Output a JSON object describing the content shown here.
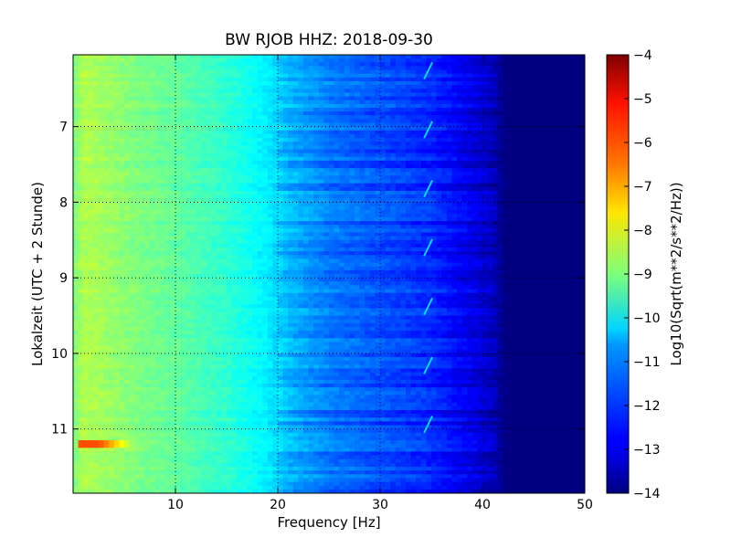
{
  "chart_data": {
    "type": "heatmap",
    "title": "BW RJOB HHZ: 2018-09-30",
    "xlabel": "Frequency [Hz]",
    "ylabel": "Lokalzeit (UTC + 2 Stunde)",
    "xlim": [
      0,
      50
    ],
    "ylim": [
      11.85,
      6.05
    ],
    "x_ticks": [
      10,
      20,
      30,
      40,
      50
    ],
    "x_tick_labels": [
      "10",
      "20",
      "30",
      "40",
      "50"
    ],
    "y_ticks": [
      7,
      8,
      9,
      10,
      11
    ],
    "y_tick_labels": [
      "7",
      "8",
      "9",
      "10",
      "11"
    ],
    "grid": true,
    "colormap": "jet",
    "colorbar": {
      "label": "Log10(Sqrt(m**2/s**2/Hz))",
      "range": [
        -14,
        -4
      ],
      "ticks": [
        -4,
        -5,
        -6,
        -7,
        -8,
        -9,
        -10,
        -11,
        -12,
        -13,
        -14
      ],
      "tick_labels": [
        "−4",
        "−5",
        "−6",
        "−7",
        "−8",
        "−9",
        "−10",
        "−11",
        "−12",
        "−13",
        "−14"
      ]
    },
    "spectrum_profile": {
      "frequency_hz": [
        0,
        1,
        3,
        6,
        10,
        15,
        19,
        21,
        25,
        30,
        35,
        38,
        40,
        41.5,
        42,
        50
      ],
      "log10_amplitude": [
        -9.1,
        -8.5,
        -8.7,
        -9.0,
        -9.3,
        -9.8,
        -10.4,
        -11.0,
        -11.6,
        -12.0,
        -12.4,
        -12.9,
        -13.2,
        -13.6,
        -14.0,
        -14.0
      ]
    },
    "noise_burst": {
      "time": 11.2,
      "frequency_hz": [
        0.5,
        6
      ],
      "log10_amplitude": -6.0
    },
    "spectral_line_frequency_hz": 34.5
  }
}
